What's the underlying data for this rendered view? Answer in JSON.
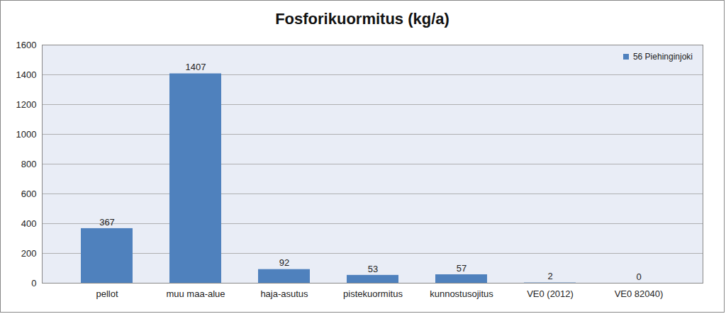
{
  "chart_data": {
    "type": "bar",
    "title": "Fosforikuormitus (kg/a)",
    "categories": [
      "pellot",
      "muu maa-alue",
      "haja-asutus",
      "pistekuormitus",
      "kunnostusojitus",
      "VE0 (2012)",
      "VE0 82040)"
    ],
    "series": [
      {
        "name": "56 Piehinginjoki",
        "color": "#4f81bd",
        "values": [
          367,
          1407,
          92,
          53,
          57,
          2,
          0
        ]
      }
    ],
    "ylim": [
      0,
      1600
    ],
    "yticks": [
      0,
      200,
      400,
      600,
      800,
      1000,
      1200,
      1400,
      1600
    ],
    "grid": true,
    "data_labels": true,
    "legend": "top-right"
  }
}
